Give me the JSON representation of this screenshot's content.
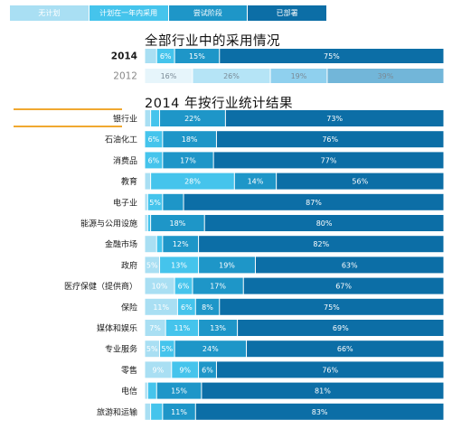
{
  "legend": {
    "items": [
      {
        "label": "无计划",
        "color": "#a9dff3"
      },
      {
        "label": "计划在一年内采用",
        "color": "#45c4ec"
      },
      {
        "label": "尝试阶段",
        "color": "#1e96c8"
      },
      {
        "label": "已部署",
        "color": "#0c6ea6"
      }
    ]
  },
  "titles": {
    "overall": "全部行业中的采用情况",
    "by_industry": "2014  年按行业统计结果"
  },
  "chart_data": [
    {
      "type": "bar",
      "stacked": true,
      "orientation": "horizontal",
      "title": "全部行业中的采用情况",
      "categories": [
        "2014",
        "2012"
      ],
      "series": [
        {
          "name": "无计划",
          "values": [
            4,
            16
          ],
          "labels": [
            "",
            "16%"
          ]
        },
        {
          "name": "计划在一年内采用",
          "values": [
            6,
            26
          ],
          "labels": [
            "6%",
            "26%"
          ]
        },
        {
          "name": "尝试阶段",
          "values": [
            15,
            19
          ],
          "labels": [
            "15%",
            "19%"
          ]
        },
        {
          "name": "已部署",
          "values": [
            75,
            39
          ],
          "labels": [
            "75%",
            "39%"
          ]
        }
      ],
      "faded_categories": [
        "2012"
      ]
    },
    {
      "type": "bar",
      "stacked": true,
      "orientation": "horizontal",
      "title": "2014  年按行业统计结果",
      "categories": [
        "银行业",
        "石油化工",
        "消费品",
        "教育",
        "电子业",
        "能源与公用设施",
        "金融市场",
        "政府",
        "医疗保健（提供商）",
        "保险",
        "媒体和娱乐",
        "专业服务",
        "零售",
        "电信",
        "旅游和运输"
      ],
      "series": [
        {
          "name": "无计划",
          "values": [
            2,
            0,
            0,
            2,
            1,
            1,
            4,
            5,
            10,
            11,
            7,
            5,
            9,
            1,
            2
          ],
          "labels": [
            "",
            "",
            "",
            "",
            "",
            "",
            "",
            "5%",
            "10%",
            "11%",
            "7%",
            "5%",
            "9%",
            "",
            ""
          ]
        },
        {
          "name": "计划在一年内采用",
          "values": [
            3,
            6,
            6,
            28,
            5,
            1,
            2,
            13,
            6,
            6,
            11,
            5,
            9,
            3,
            4
          ],
          "labels": [
            "",
            "6%",
            "6%",
            "28%",
            "5%",
            "",
            "",
            "13%",
            "6%",
            "6%",
            "11%",
            "5%",
            "9%",
            "",
            ""
          ]
        },
        {
          "name": "尝试阶段",
          "values": [
            22,
            18,
            17,
            14,
            7,
            18,
            12,
            19,
            17,
            8,
            13,
            24,
            6,
            15,
            11
          ],
          "labels": [
            "22%",
            "18%",
            "17%",
            "14%",
            "",
            "18%",
            "12%",
            "19%",
            "17%",
            "8%",
            "13%",
            "24%",
            "6%",
            "15%",
            "11%"
          ]
        },
        {
          "name": "已部署",
          "values": [
            73,
            76,
            77,
            56,
            87,
            80,
            82,
            63,
            67,
            75,
            69,
            66,
            76,
            81,
            83
          ],
          "labels": [
            "73%",
            "76%",
            "77%",
            "56%",
            "87%",
            "80%",
            "82%",
            "63%",
            "67%",
            "75%",
            "69%",
            "66%",
            "76%",
            "81%",
            "83%"
          ]
        }
      ],
      "highlighted_category": "银行业"
    }
  ]
}
